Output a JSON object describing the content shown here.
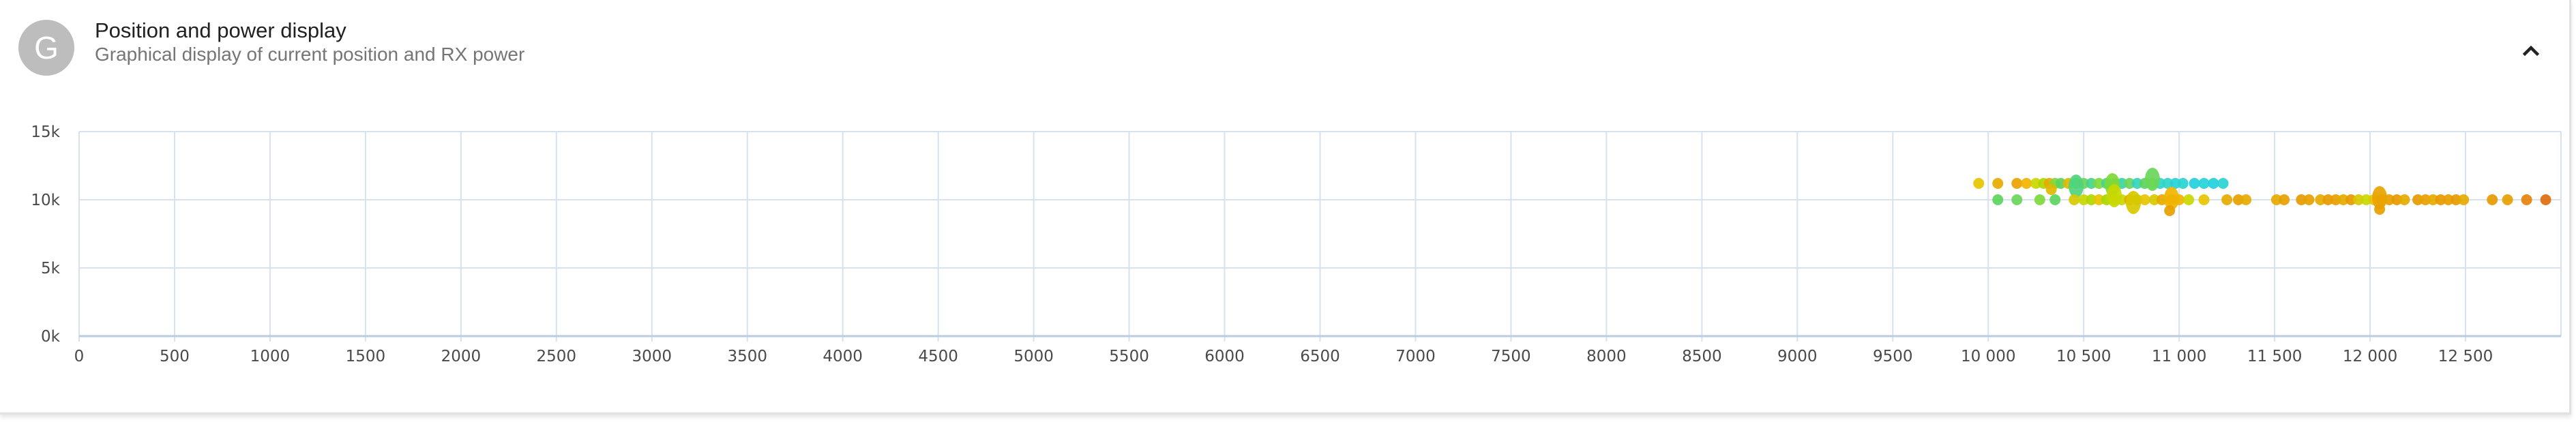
{
  "header": {
    "avatar_letter": "G",
    "title": "Position and power display",
    "subtitle": "Graphical display of current position and RX power",
    "collapse_icon": "chevron-up-icon"
  },
  "chart_data": {
    "type": "scatter",
    "title": "",
    "xlabel": "",
    "ylabel": "",
    "xlim": [
      0,
      13000
    ],
    "ylim": [
      0,
      15000
    ],
    "x_ticks": [
      0,
      500,
      1000,
      1500,
      2000,
      2500,
      3000,
      3500,
      4000,
      4500,
      5000,
      5500,
      6000,
      6500,
      7000,
      7500,
      8000,
      8500,
      9000,
      9500,
      10000,
      10500,
      11000,
      11500,
      12000,
      12500
    ],
    "x_tick_labels": [
      "0",
      "500",
      "1000",
      "1500",
      "2000",
      "2500",
      "3000",
      "3500",
      "4000",
      "4500",
      "5000",
      "5500",
      "6000",
      "6500",
      "7000",
      "7500",
      "8000",
      "8500",
      "9000",
      "9500",
      "10 000",
      "10 500",
      "11 000",
      "11 500",
      "12 000",
      "12 500"
    ],
    "y_ticks": [
      0,
      5000,
      10000,
      15000
    ],
    "y_tick_labels": [
      "0k",
      "5k",
      "10k",
      "15k"
    ],
    "grid": true,
    "legend": "none",
    "points": [
      {
        "x": 9950,
        "y": 11200,
        "c": "#e8c400"
      },
      {
        "x": 10050,
        "y": 11200,
        "c": "#e6aa00"
      },
      {
        "x": 10150,
        "y": 11200,
        "c": "#e9a300"
      },
      {
        "x": 10200,
        "y": 11200,
        "c": "#f0b400"
      },
      {
        "x": 10250,
        "y": 11200,
        "c": "#c8d800"
      },
      {
        "x": 10290,
        "y": 11200,
        "c": "#b0d800"
      },
      {
        "x": 10320,
        "y": 11200,
        "c": "#e6aa00"
      },
      {
        "x": 10350,
        "y": 11200,
        "c": "#7ed93a"
      },
      {
        "x": 10380,
        "y": 11200,
        "c": "#5cd45c"
      },
      {
        "x": 10420,
        "y": 11200,
        "c": "#e0b800"
      },
      {
        "x": 10460,
        "y": 11200,
        "c": "#4fd47c"
      },
      {
        "x": 10500,
        "y": 11200,
        "c": "#6ad65a"
      },
      {
        "x": 10540,
        "y": 11200,
        "c": "#48d48c"
      },
      {
        "x": 10580,
        "y": 11200,
        "c": "#7ed93a"
      },
      {
        "x": 10620,
        "y": 11200,
        "c": "#4ad484"
      },
      {
        "x": 10660,
        "y": 11200,
        "c": "#5cd45c"
      },
      {
        "x": 10700,
        "y": 11200,
        "c": "#3ad4a4"
      },
      {
        "x": 10740,
        "y": 11200,
        "c": "#6ad65a"
      },
      {
        "x": 10780,
        "y": 11200,
        "c": "#34d4bc"
      },
      {
        "x": 10820,
        "y": 11200,
        "c": "#5cd45c"
      },
      {
        "x": 10860,
        "y": 11200,
        "c": "#7ed93a"
      },
      {
        "x": 10900,
        "y": 11200,
        "c": "#2ed4cc"
      },
      {
        "x": 10940,
        "y": 11200,
        "c": "#30d4c8"
      },
      {
        "x": 10980,
        "y": 11200,
        "c": "#26d2d8"
      },
      {
        "x": 11020,
        "y": 11200,
        "c": "#2ad4d0"
      },
      {
        "x": 11080,
        "y": 11200,
        "c": "#22d0dc"
      },
      {
        "x": 11130,
        "y": 11200,
        "c": "#26d2d8"
      },
      {
        "x": 11180,
        "y": 11200,
        "c": "#22d0dc"
      },
      {
        "x": 11230,
        "y": 11200,
        "c": "#2ad4d0"
      },
      {
        "x": 10460,
        "y": 11000,
        "c": "#4fd47c",
        "big": true
      },
      {
        "x": 10650,
        "y": 11100,
        "c": "#7ed93a",
        "big": true
      },
      {
        "x": 10860,
        "y": 11500,
        "c": "#6ad65a",
        "big": true
      },
      {
        "x": 10330,
        "y": 10750,
        "c": "#e0b800"
      },
      {
        "x": 10050,
        "y": 10000,
        "c": "#5cd45c"
      },
      {
        "x": 10150,
        "y": 10000,
        "c": "#6ad65a"
      },
      {
        "x": 10270,
        "y": 10000,
        "c": "#7ed93a"
      },
      {
        "x": 10350,
        "y": 10000,
        "c": "#5cd45c"
      },
      {
        "x": 10450,
        "y": 10000,
        "c": "#d8c800"
      },
      {
        "x": 10500,
        "y": 10000,
        "c": "#c8d800"
      },
      {
        "x": 10540,
        "y": 10000,
        "c": "#b0d800"
      },
      {
        "x": 10580,
        "y": 10000,
        "c": "#e8c400"
      },
      {
        "x": 10620,
        "y": 10000,
        "c": "#a8d800"
      },
      {
        "x": 10660,
        "y": 10000,
        "c": "#e8c400"
      },
      {
        "x": 10700,
        "y": 10000,
        "c": "#c8d800"
      },
      {
        "x": 10740,
        "y": 10000,
        "c": "#e6aa00"
      },
      {
        "x": 10780,
        "y": 10000,
        "c": "#b0d800"
      },
      {
        "x": 10820,
        "y": 10000,
        "c": "#e8c400"
      },
      {
        "x": 10870,
        "y": 10000,
        "c": "#d8c800"
      },
      {
        "x": 10910,
        "y": 10000,
        "c": "#e6aa00"
      },
      {
        "x": 10960,
        "y": 10000,
        "c": "#e9a300"
      },
      {
        "x": 11000,
        "y": 10000,
        "c": "#f0b400"
      },
      {
        "x": 11050,
        "y": 10000,
        "c": "#c8d800"
      },
      {
        "x": 11130,
        "y": 10000,
        "c": "#e8c400"
      },
      {
        "x": 11250,
        "y": 10000,
        "c": "#e6aa00"
      },
      {
        "x": 11310,
        "y": 10000,
        "c": "#e8a000"
      },
      {
        "x": 11350,
        "y": 10000,
        "c": "#e6aa00"
      },
      {
        "x": 11510,
        "y": 10000,
        "c": "#e6aa00"
      },
      {
        "x": 11550,
        "y": 10000,
        "c": "#e8a000"
      },
      {
        "x": 11640,
        "y": 10000,
        "c": "#e69a00"
      },
      {
        "x": 11680,
        "y": 10000,
        "c": "#e8a000"
      },
      {
        "x": 11740,
        "y": 10000,
        "c": "#e6aa00"
      },
      {
        "x": 11780,
        "y": 10000,
        "c": "#e69a00"
      },
      {
        "x": 11820,
        "y": 10000,
        "c": "#e8a000"
      },
      {
        "x": 11860,
        "y": 10000,
        "c": "#e6aa00"
      },
      {
        "x": 11900,
        "y": 10000,
        "c": "#e69a00"
      },
      {
        "x": 11940,
        "y": 10000,
        "c": "#d8c800"
      },
      {
        "x": 11980,
        "y": 10000,
        "c": "#c8d800"
      },
      {
        "x": 12020,
        "y": 10000,
        "c": "#e8c400"
      },
      {
        "x": 12060,
        "y": 10000,
        "c": "#e6aa00"
      },
      {
        "x": 12100,
        "y": 10000,
        "c": "#e8a000"
      },
      {
        "x": 12140,
        "y": 10000,
        "c": "#e69a00"
      },
      {
        "x": 12180,
        "y": 10000,
        "c": "#e6aa00"
      },
      {
        "x": 12250,
        "y": 10000,
        "c": "#e69a00"
      },
      {
        "x": 12290,
        "y": 10000,
        "c": "#e8a000"
      },
      {
        "x": 12330,
        "y": 10000,
        "c": "#e6aa00"
      },
      {
        "x": 12370,
        "y": 10000,
        "c": "#e69a00"
      },
      {
        "x": 12410,
        "y": 10000,
        "c": "#e8a000"
      },
      {
        "x": 12450,
        "y": 10000,
        "c": "#e69a00"
      },
      {
        "x": 12490,
        "y": 10000,
        "c": "#e6aa00"
      },
      {
        "x": 12640,
        "y": 10000,
        "c": "#e69a00"
      },
      {
        "x": 12720,
        "y": 10000,
        "c": "#e8a000"
      },
      {
        "x": 12820,
        "y": 10000,
        "c": "#e5820a"
      },
      {
        "x": 12920,
        "y": 10000,
        "c": "#e06c0c"
      },
      {
        "x": 10660,
        "y": 10300,
        "c": "#c8d800",
        "big": true
      },
      {
        "x": 10760,
        "y": 9800,
        "c": "#d8c800",
        "big": true
      },
      {
        "x": 10960,
        "y": 10100,
        "c": "#f0b400",
        "big": true
      },
      {
        "x": 10950,
        "y": 9200,
        "c": "#e8a000"
      },
      {
        "x": 12050,
        "y": 10150,
        "c": "#e9a300",
        "big": true
      },
      {
        "x": 12050,
        "y": 9300,
        "c": "#e8a000"
      }
    ]
  }
}
